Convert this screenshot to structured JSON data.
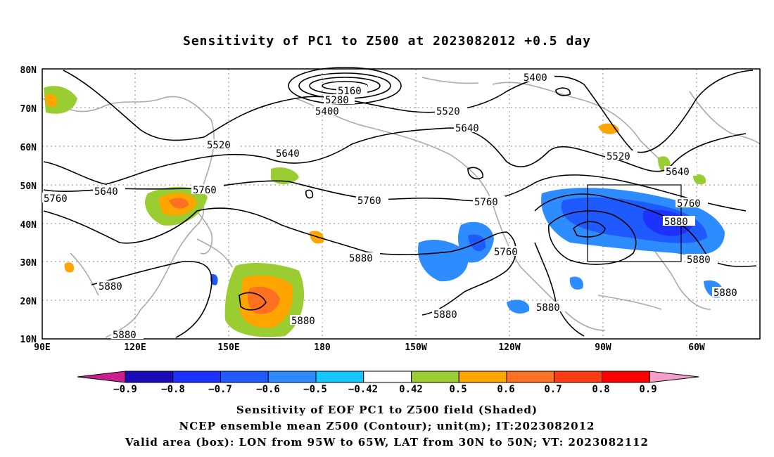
{
  "title": "Sensitivity of PC1 to Z500 at 2023082012 +0.5 day",
  "lat_labels": [
    "80N",
    "70N",
    "60N",
    "50N",
    "40N",
    "30N",
    "20N",
    "10N"
  ],
  "lon_labels": [
    "90E",
    "120E",
    "150E",
    "180",
    "150W",
    "120W",
    "90W",
    "60W"
  ],
  "contour_labels": [
    "5160",
    "5280",
    "5400",
    "5520",
    "5640",
    "5760",
    "5880"
  ],
  "colorbar": {
    "labels": [
      "−0.9",
      "−0.8",
      "−0.7",
      "−0.6",
      "−0.5",
      "−0.42",
      "0.42",
      "0.5",
      "0.6",
      "0.7",
      "0.8",
      "0.9"
    ],
    "colors": [
      "#cc1e8e",
      "#1a0ab8",
      "#1e32ff",
      "#1e5aff",
      "#2d8cff",
      "#14c8ff",
      "#ffffff",
      "#9acd32",
      "#ffa500",
      "#ff7020",
      "#ff3c14",
      "#ff0000",
      "#f59ec8"
    ]
  },
  "captions": [
    "Sensitivity of EOF PC1 to Z500 field (Shaded)",
    "NCEP ensemble mean Z500 (Contour); unit(m); IT:2023082012",
    "Valid area (box): LON from 95W to 65W, LAT from 30N to 50N; VT: 2023082112"
  ],
  "colors": {
    "positive": "#9acd32",
    "negative": "#2d8cff",
    "coast": "#aaaaaa"
  }
}
